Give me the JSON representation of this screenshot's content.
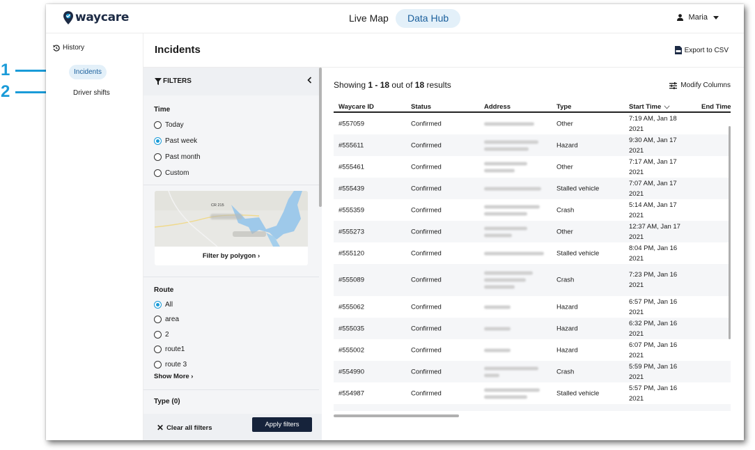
{
  "callouts": [
    {
      "label": "1"
    },
    {
      "label": "2"
    }
  ],
  "brand": {
    "name_part1": "way",
    "name_part2": "care"
  },
  "topnav": {
    "live_map": "Live Map",
    "data_hub": "Data Hub",
    "user": "Maria"
  },
  "leftnav": {
    "history": "History",
    "items": [
      {
        "label": "Incidents",
        "active": true
      },
      {
        "label": "Driver shifts",
        "active": false
      }
    ]
  },
  "page": {
    "title": "Incidents",
    "export_label": "Export to CSV"
  },
  "filters": {
    "title": "FILTERS",
    "time": {
      "label": "Time",
      "options": [
        {
          "label": "Today",
          "selected": false
        },
        {
          "label": "Past week",
          "selected": true
        },
        {
          "label": "Past month",
          "selected": false
        },
        {
          "label": "Custom",
          "selected": false
        }
      ]
    },
    "map": {
      "road_label": "CR 215",
      "link": "Filter by polygon"
    },
    "route": {
      "label": "Route",
      "options": [
        {
          "label": "All",
          "selected": true
        },
        {
          "label": "area",
          "selected": false
        },
        {
          "label": "2",
          "selected": false
        },
        {
          "label": "route1",
          "selected": false
        },
        {
          "label": "route 3",
          "selected": false
        }
      ],
      "show_more": "Show More"
    },
    "type_label": "Type (0)",
    "clear_all": "Clear all filters",
    "apply": "Apply filters"
  },
  "results": {
    "showing_prefix": "Showing ",
    "range": "1 - 18",
    "middle": " out of ",
    "total": "18",
    "suffix": " results",
    "modify_columns": "Modify Columns",
    "columns": [
      "Waycare ID",
      "Status",
      "Address",
      "Type",
      "Start Time",
      "End Time"
    ],
    "rows": [
      {
        "id": "#557059",
        "status": "Confirmed",
        "type": "Other",
        "start_time": "7:19 AM, Jan 18 2021"
      },
      {
        "id": "#555611",
        "status": "Confirmed",
        "type": "Hazard",
        "start_time": "9:30 AM, Jan 17 2021"
      },
      {
        "id": "#555461",
        "status": "Confirmed",
        "type": "Other",
        "start_time": "7:17 AM, Jan 17 2021"
      },
      {
        "id": "#555439",
        "status": "Confirmed",
        "type": "Stalled vehicle",
        "start_time": "7:07 AM, Jan 17 2021"
      },
      {
        "id": "#555359",
        "status": "Confirmed",
        "type": "Crash",
        "start_time": "5:14 AM, Jan 17 2021"
      },
      {
        "id": "#555273",
        "status": "Confirmed",
        "type": "Other",
        "start_time": "12:37 AM, Jan 17 2021"
      },
      {
        "id": "#555120",
        "status": "Confirmed",
        "type": "Stalled vehicle",
        "start_time": "8:04 PM, Jan 16 2021"
      },
      {
        "id": "#555089",
        "status": "Confirmed",
        "type": "Crash",
        "start_time": "7:23 PM, Jan 16 2021"
      },
      {
        "id": "#555062",
        "status": "Confirmed",
        "type": "Hazard",
        "start_time": "6:57 PM, Jan 16 2021"
      },
      {
        "id": "#555035",
        "status": "Confirmed",
        "type": "Hazard",
        "start_time": "6:32 PM, Jan 16 2021"
      },
      {
        "id": "#555002",
        "status": "Confirmed",
        "type": "Hazard",
        "start_time": "6:07 PM, Jan 16 2021"
      },
      {
        "id": "#554990",
        "status": "Confirmed",
        "type": "Crash",
        "start_time": "5:59 PM, Jan 16 2021"
      },
      {
        "id": "#554987",
        "status": "Confirmed",
        "type": "Stalled vehicle",
        "start_time": "5:57 PM, Jan 16 2021"
      }
    ]
  },
  "colors": {
    "accent": "#1a9bd8",
    "active_bg": "#e3f0f9",
    "button_dark": "#16233b"
  }
}
